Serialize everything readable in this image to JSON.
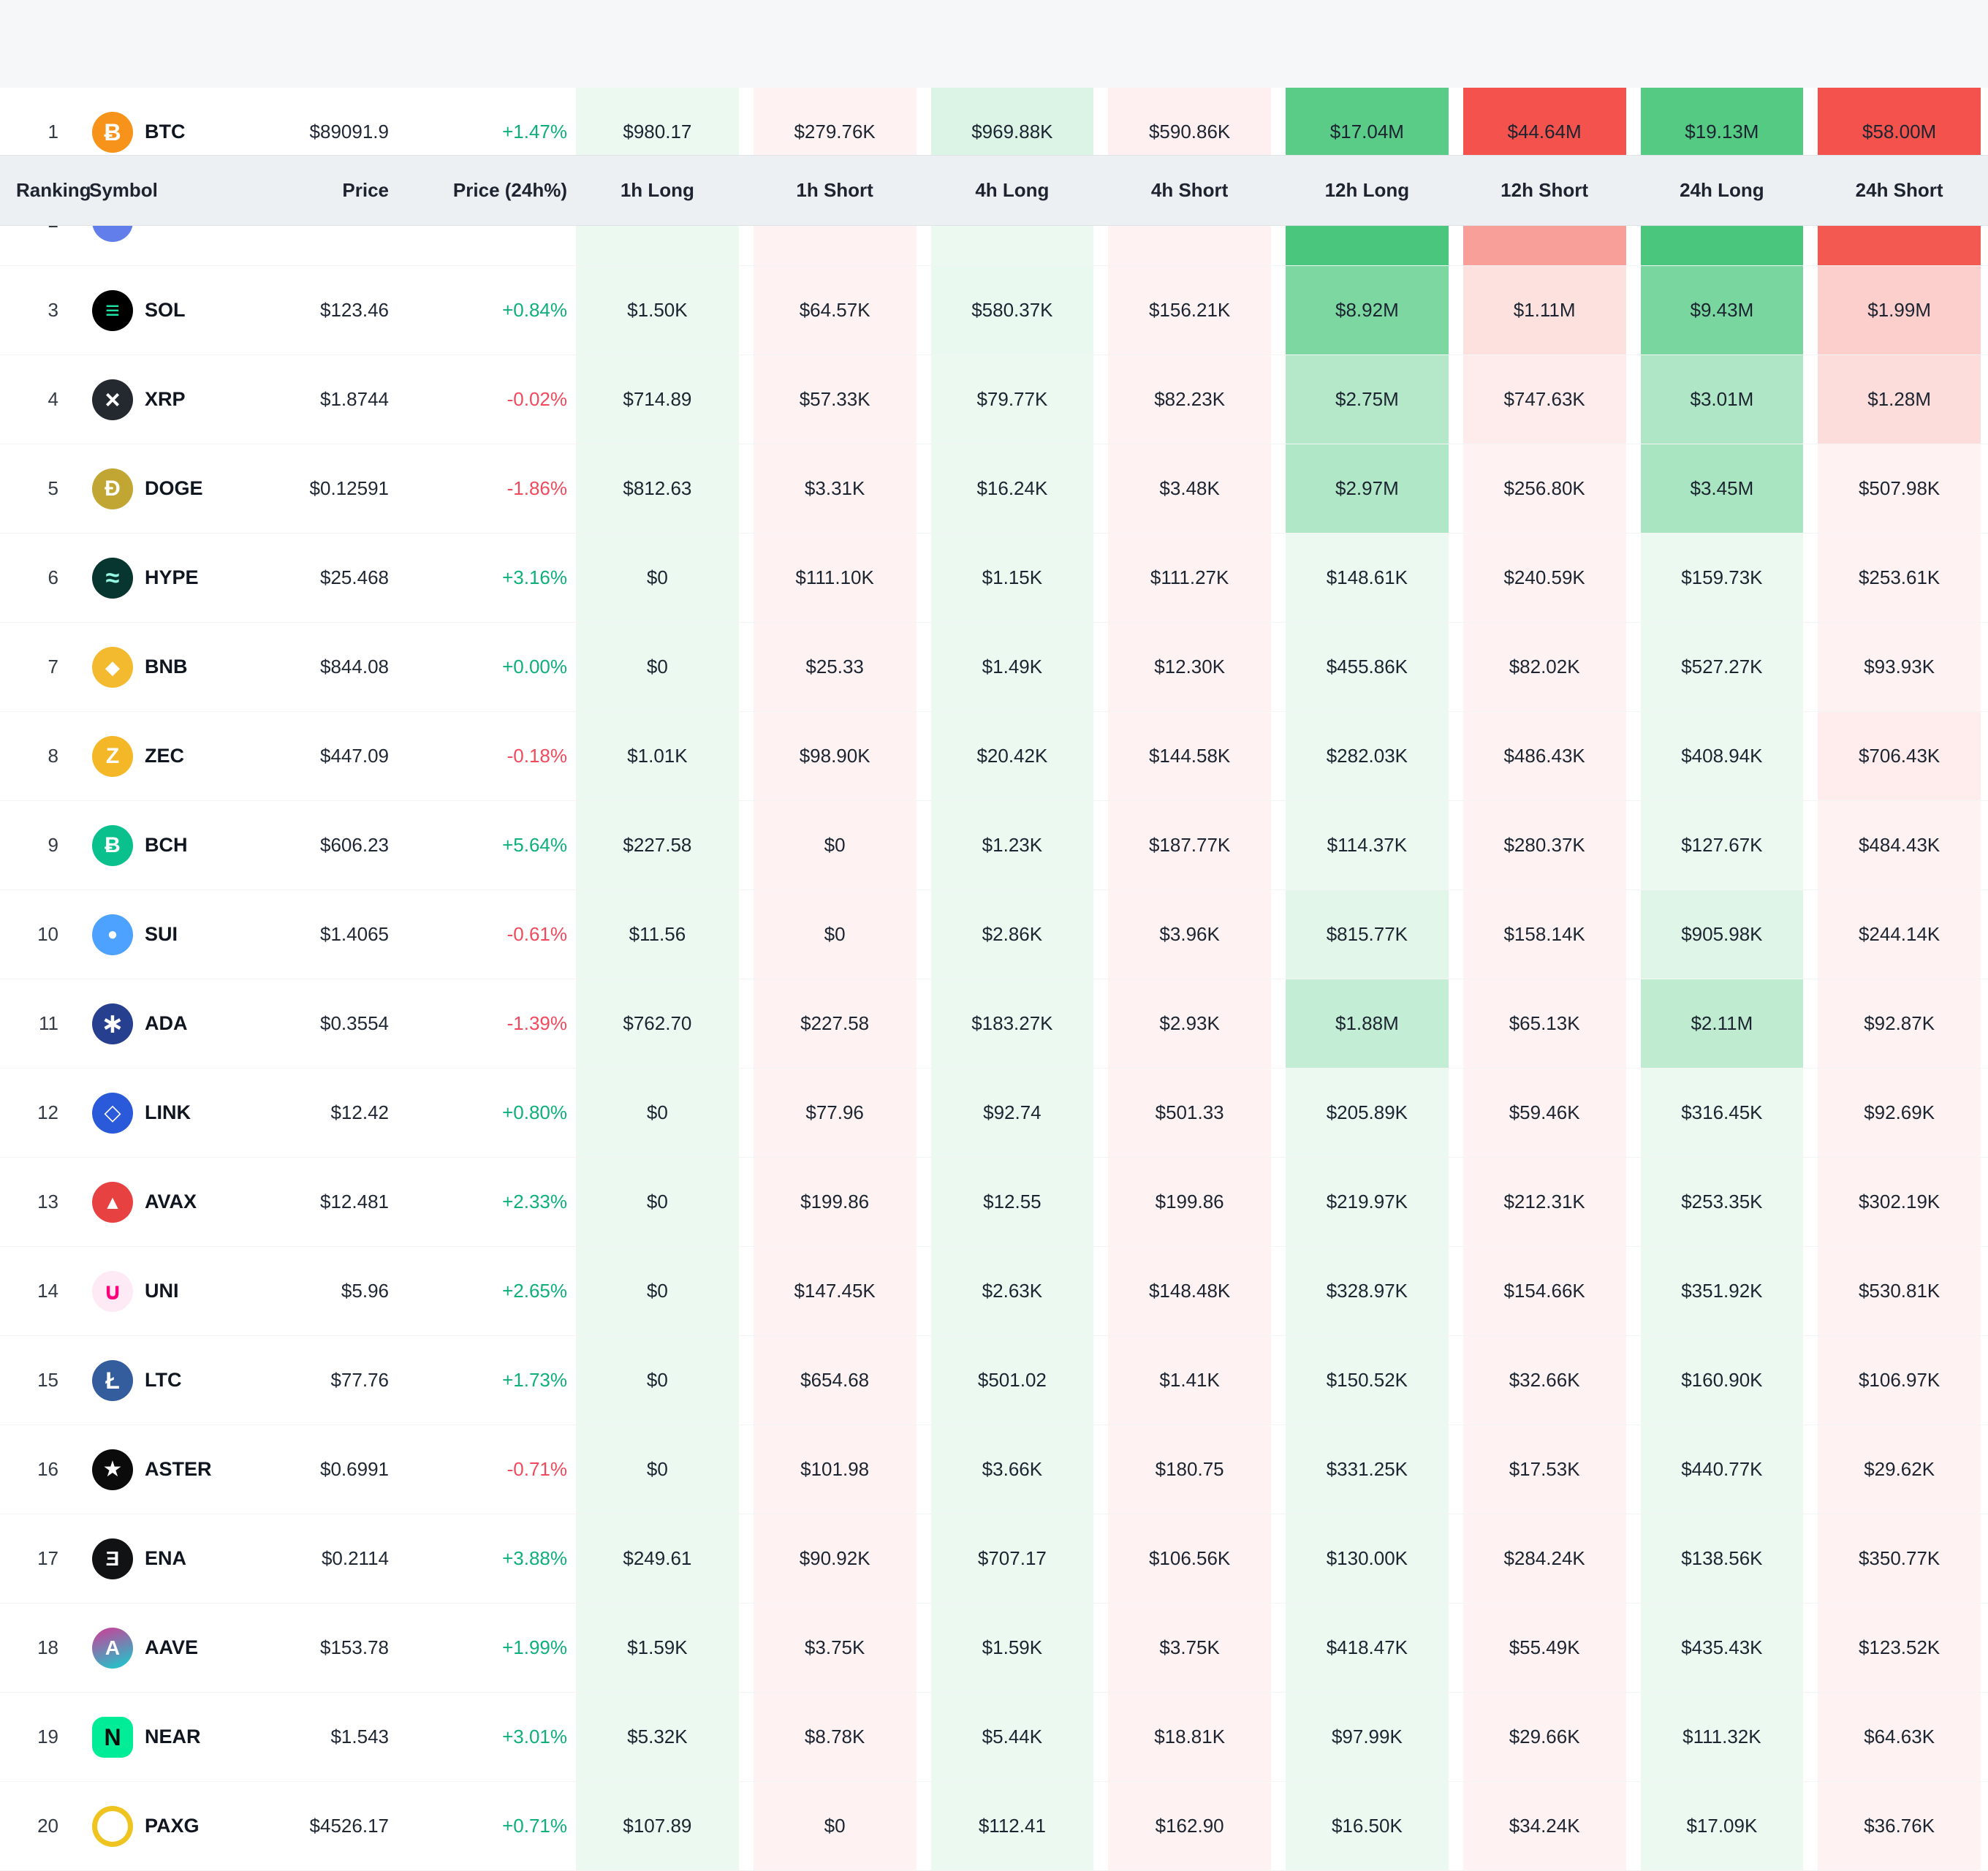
{
  "table": {
    "columns": [
      "Ranking",
      "Symbol",
      "Price",
      "Price (24h%)",
      "1h Long",
      "1h Short",
      "4h Long",
      "4h Short",
      "12h Long",
      "12h Short",
      "24h Long",
      "24h Short"
    ],
    "rows": [
      {
        "ranking": "1",
        "symbol": "BTC",
        "price": "$89091.9",
        "change": "+1.47%",
        "icon": {
          "bg": "#f7931a",
          "fg": "#ffffff",
          "glyph": "Ƀ",
          "size": 32
        },
        "values": [
          "$980.17",
          "$279.76K",
          "$969.88K",
          "$590.86K",
          "$17.04M",
          "$44.64M",
          "$19.13M",
          "$58.00M"
        ]
      },
      {
        "ranking": "2",
        "symbol": "",
        "price": "",
        "change": "",
        "hidden": true,
        "icon": {
          "bg": "#627eea",
          "fg": "#ffffff",
          "glyph": "",
          "size": 0
        },
        "values": [
          "",
          "",
          "",
          "",
          "",
          "",
          "",
          ""
        ],
        "cell_colors": [
          "rgba(34,187,95,0.085)",
          "rgba(242,70,62,0.065)",
          "rgba(34,187,95,0.085)",
          "rgba(242,70,62,0.065)",
          "rgba(34,187,95,0.82)",
          "rgba(242,70,62,0.52)",
          "rgba(34,187,95,0.82)",
          "rgba(242,70,62,0.90)"
        ]
      },
      {
        "ranking": "3",
        "symbol": "SOL",
        "price": "$123.46",
        "change": "+0.84%",
        "icon": {
          "bg": "#000000",
          "fg": "#1ee2a5",
          "glyph": "≡",
          "size": 34
        },
        "values": [
          "$1.50K",
          "$64.57K",
          "$580.37K",
          "$156.21K",
          "$8.92M",
          "$1.11M",
          "$9.43M",
          "$1.99M"
        ]
      },
      {
        "ranking": "4",
        "symbol": "XRP",
        "price": "$1.8744",
        "change": "-0.02%",
        "icon": {
          "bg": "#23292f",
          "fg": "#ffffff",
          "glyph": "×",
          "size": 36
        },
        "values": [
          "$714.89",
          "$57.33K",
          "$79.77K",
          "$82.23K",
          "$2.75M",
          "$747.63K",
          "$3.01M",
          "$1.28M"
        ]
      },
      {
        "ranking": "5",
        "symbol": "DOGE",
        "price": "$0.12591",
        "change": "-1.86%",
        "icon": {
          "bg": "#c2a633",
          "fg": "#ffffff",
          "glyph": "Ð",
          "size": 30
        },
        "values": [
          "$812.63",
          "$3.31K",
          "$16.24K",
          "$3.48K",
          "$2.97M",
          "$256.80K",
          "$3.45M",
          "$507.98K"
        ]
      },
      {
        "ranking": "6",
        "symbol": "HYPE",
        "price": "$25.468",
        "change": "+3.16%",
        "icon": {
          "bg": "#073530",
          "fg": "#97fce4",
          "glyph": "≈",
          "size": 34
        },
        "values": [
          "$0",
          "$111.10K",
          "$1.15K",
          "$111.27K",
          "$148.61K",
          "$240.59K",
          "$159.73K",
          "$253.61K"
        ]
      },
      {
        "ranking": "7",
        "symbol": "BNB",
        "price": "$844.08",
        "change": "+0.00%",
        "icon": {
          "bg": "#f3ba2f",
          "fg": "#ffffff",
          "glyph": "◆",
          "size": 26
        },
        "values": [
          "$0",
          "$25.33",
          "$1.49K",
          "$12.30K",
          "$455.86K",
          "$82.02K",
          "$527.27K",
          "$93.93K"
        ]
      },
      {
        "ranking": "8",
        "symbol": "ZEC",
        "price": "$447.09",
        "change": "-0.18%",
        "icon": {
          "bg": "#f4b728",
          "fg": "#ffffff",
          "glyph": "Z",
          "size": 30
        },
        "values": [
          "$1.01K",
          "$98.90K",
          "$20.42K",
          "$144.58K",
          "$282.03K",
          "$486.43K",
          "$408.94K",
          "$706.43K"
        ]
      },
      {
        "ranking": "9",
        "symbol": "BCH",
        "price": "$606.23",
        "change": "+5.64%",
        "icon": {
          "bg": "#0ac18e",
          "fg": "#ffffff",
          "glyph": "Ƀ",
          "size": 30
        },
        "values": [
          "$227.58",
          "$0",
          "$1.23K",
          "$187.77K",
          "$114.37K",
          "$280.37K",
          "$127.67K",
          "$484.43K"
        ]
      },
      {
        "ranking": "10",
        "symbol": "SUI",
        "price": "$1.4065",
        "change": "-0.61%",
        "icon": {
          "bg": "#4da2ff",
          "fg": "#ffffff",
          "glyph": "●",
          "size": 24
        },
        "values": [
          "$11.56",
          "$0",
          "$2.86K",
          "$3.96K",
          "$815.77K",
          "$158.14K",
          "$905.98K",
          "$244.14K"
        ]
      },
      {
        "ranking": "11",
        "symbol": "ADA",
        "price": "$0.3554",
        "change": "-1.39%",
        "icon": {
          "bg": "#26408f",
          "fg": "#ffffff",
          "glyph": "∗",
          "size": 38
        },
        "values": [
          "$762.70",
          "$227.58",
          "$183.27K",
          "$2.93K",
          "$1.88M",
          "$65.13K",
          "$2.11M",
          "$92.87K"
        ]
      },
      {
        "ranking": "12",
        "symbol": "LINK",
        "price": "$12.42",
        "change": "+0.80%",
        "icon": {
          "bg": "#2a5ada",
          "fg": "#ffffff",
          "glyph": "◇",
          "size": 30
        },
        "values": [
          "$0",
          "$77.96",
          "$92.74",
          "$501.33",
          "$205.89K",
          "$59.46K",
          "$316.45K",
          "$92.69K"
        ]
      },
      {
        "ranking": "13",
        "symbol": "AVAX",
        "price": "$12.481",
        "change": "+2.33%",
        "icon": {
          "bg": "#e84142",
          "fg": "#ffffff",
          "glyph": "▲",
          "size": 26
        },
        "values": [
          "$0",
          "$199.86",
          "$12.55",
          "$199.86",
          "$219.97K",
          "$212.31K",
          "$253.35K",
          "$302.19K"
        ]
      },
      {
        "ranking": "14",
        "symbol": "UNI",
        "price": "$5.96",
        "change": "+2.65%",
        "icon": {
          "bg": "#feeaf5",
          "fg": "#ff007a",
          "glyph": "∪",
          "size": 32
        },
        "values": [
          "$0",
          "$147.45K",
          "$2.63K",
          "$148.48K",
          "$328.97K",
          "$154.66K",
          "$351.92K",
          "$530.81K"
        ]
      },
      {
        "ranking": "15",
        "symbol": "LTC",
        "price": "$77.76",
        "change": "+1.73%",
        "icon": {
          "bg": "#345d9d",
          "fg": "#ffffff",
          "glyph": "Ł",
          "size": 32
        },
        "values": [
          "$0",
          "$654.68",
          "$501.02",
          "$1.41K",
          "$150.52K",
          "$32.66K",
          "$160.90K",
          "$106.97K"
        ]
      },
      {
        "ranking": "16",
        "symbol": "ASTER",
        "price": "$0.6991",
        "change": "-0.71%",
        "icon": {
          "bg": "#0b0b0b",
          "fg": "#ffffff",
          "glyph": "★",
          "size": 30
        },
        "values": [
          "$0",
          "$101.98",
          "$3.66K",
          "$180.75",
          "$331.25K",
          "$17.53K",
          "$440.77K",
          "$29.62K"
        ]
      },
      {
        "ranking": "17",
        "symbol": "ENA",
        "price": "$0.2114",
        "change": "+3.88%",
        "icon": {
          "bg": "#111214",
          "fg": "#ffffff",
          "glyph": "Ǝ",
          "size": 28
        },
        "values": [
          "$249.61",
          "$90.92K",
          "$707.17",
          "$106.56K",
          "$130.00K",
          "$284.24K",
          "$138.56K",
          "$350.77K"
        ]
      },
      {
        "ranking": "18",
        "symbol": "AAVE",
        "price": "$153.78",
        "change": "+1.99%",
        "icon": {
          "gradient": [
            "#b6509e",
            "#2ebac6"
          ],
          "fg": "#ffffff",
          "glyph": "A",
          "size": 28
        },
        "values": [
          "$1.59K",
          "$3.75K",
          "$1.59K",
          "$3.75K",
          "$418.47K",
          "$55.49K",
          "$435.43K",
          "$123.52K"
        ]
      },
      {
        "ranking": "19",
        "symbol": "NEAR",
        "price": "$1.543",
        "change": "+3.01%",
        "icon": {
          "bg": "#00ec97",
          "fg": "#0b0b0b",
          "glyph": "N",
          "shape": "rounded",
          "size": 32
        },
        "values": [
          "$5.32K",
          "$8.78K",
          "$5.44K",
          "$18.81K",
          "$97.99K",
          "$29.66K",
          "$111.32K",
          "$64.63K"
        ]
      },
      {
        "ranking": "20",
        "symbol": "PAXG",
        "price": "$4526.17",
        "change": "+0.71%",
        "icon": {
          "bg": "#ffffff",
          "fg": "#f0c420",
          "glyph": "",
          "ring": "#f0c420",
          "size": 0
        },
        "values": [
          "$107.89",
          "$0",
          "$112.41",
          "$162.90",
          "$16.50K",
          "$34.24K",
          "$17.09K",
          "$36.76K"
        ]
      }
    ]
  },
  "colors": {
    "long_base": "#22bb5f",
    "short_base": "#f2463e",
    "positive": "#0eaf7b",
    "negative": "#f04a5c",
    "header_bg": "#edf0f3"
  }
}
